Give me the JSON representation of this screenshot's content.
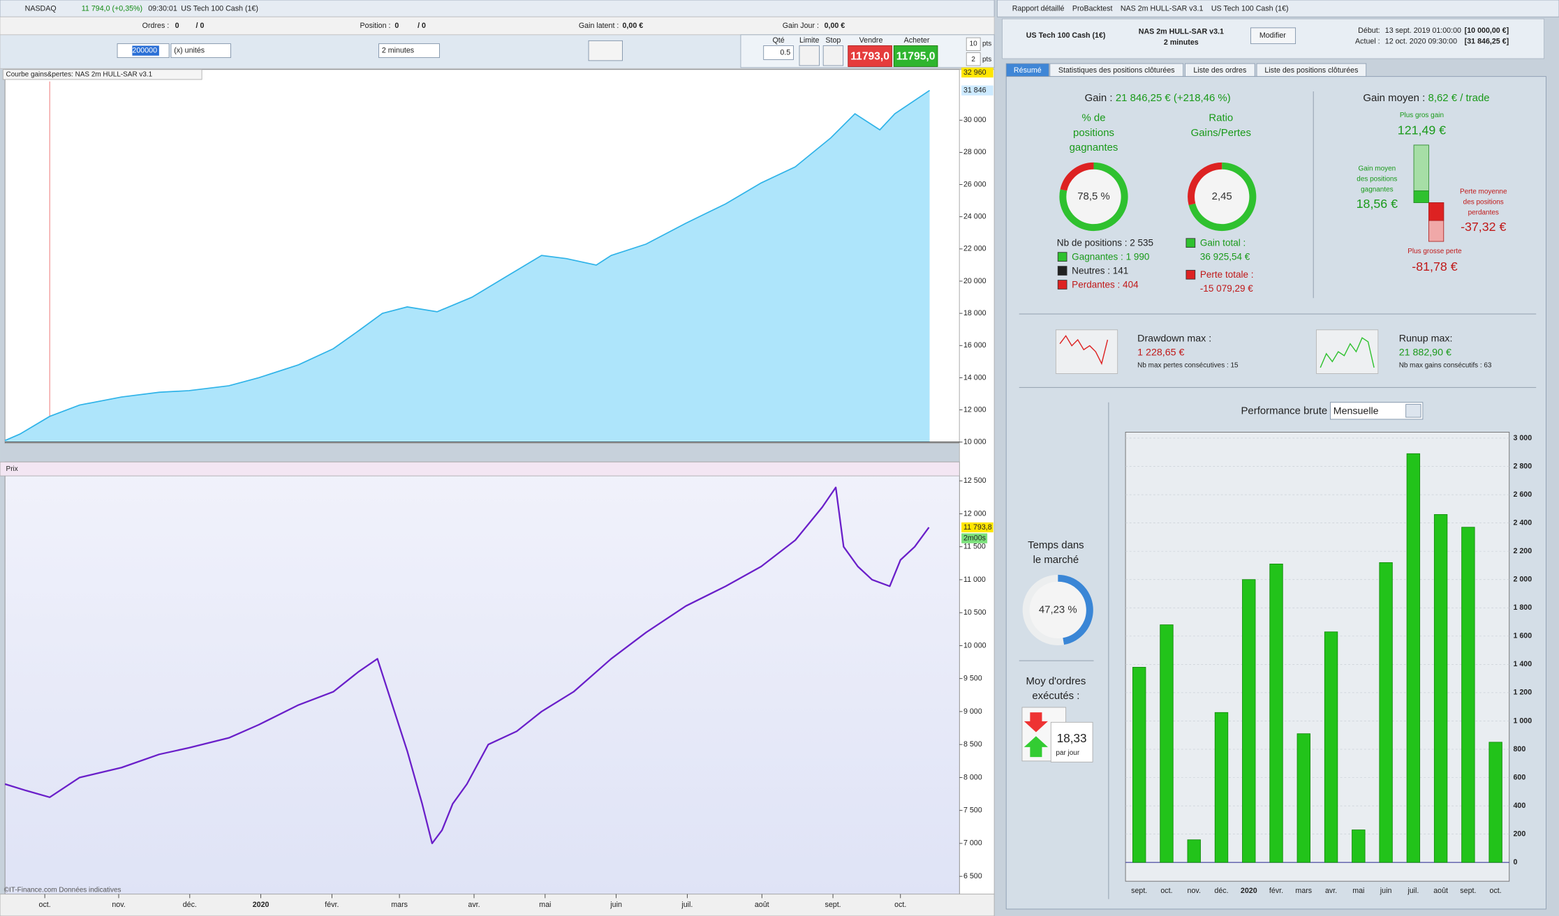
{
  "platform": {
    "window_title": "NASDAQ",
    "quote": "11 794,0 (+0,35%)",
    "time": "09:30:01",
    "instrument": "US Tech 100 Cash (1€)",
    "orders_label": "Ordres :",
    "orders_value": "0",
    "orders_total": "/ 0",
    "position_label": "Position :",
    "position_value": "0",
    "position_total": "/ 0",
    "unrealized_label": "Gain latent :",
    "unrealized_value": "0,00 €",
    "daily_label": "Gain Jour :",
    "daily_value": "0,00 €",
    "capital": "200000",
    "size_mode": "(x) unités",
    "timeframe": "2 minutes",
    "qty_label": "Qté",
    "qty": "0.5",
    "limit_label": "Limite",
    "stop_label": "Stop",
    "sell_label": "Vendre",
    "sell_price": "11793,0",
    "buy_label": "Acheter",
    "buy_price": "11795,0",
    "stop_pts": "10",
    "stop_unit": "pts",
    "limit_pts": "2",
    "limit_unit": "pts",
    "equity_panel": "Courbe gains&pertes: NAS 2m HULL-SAR v3.1",
    "price_panel": "Prix",
    "footer": "©IT-Finance.com  Données indicatives"
  },
  "chart_data": [
    {
      "type": "area",
      "color": "#2fb3e8",
      "fill": "#aee5fb",
      "xlim": [
        0,
        13.43
      ],
      "ylim": [
        10000,
        32960
      ],
      "x": [
        0,
        0.21,
        0.63,
        1.05,
        1.64,
        2.17,
        2.59,
        3.15,
        3.57,
        4.13,
        4.62,
        4.97,
        5.31,
        5.66,
        6.08,
        6.57,
        7.06,
        7.55,
        7.9,
        8.32,
        8.53,
        9.02,
        9.58,
        10.14,
        10.64,
        11.12,
        11.62,
        11.96,
        12.31,
        12.52,
        13.01
      ],
      "values": [
        10100,
        10500,
        11600,
        12300,
        12800,
        13100,
        13200,
        13500,
        14000,
        14800,
        15800,
        16900,
        18000,
        18400,
        18100,
        19000,
        20300,
        21600,
        21400,
        21000,
        21600,
        22300,
        23600,
        24800,
        26100,
        27100,
        28900,
        30400,
        29400,
        30400,
        31846
      ],
      "yticks": [
        {
          "value": 10000,
          "label": "10 000"
        },
        {
          "value": 12000,
          "label": "12 000"
        },
        {
          "value": 14000,
          "label": "14 000"
        },
        {
          "value": 16000,
          "label": "16 000"
        },
        {
          "value": 18000,
          "label": "18 000"
        },
        {
          "value": 20000,
          "label": "20 000"
        },
        {
          "value": 22000,
          "label": "22 000"
        },
        {
          "value": 24000,
          "label": "24 000"
        },
        {
          "value": 26000,
          "label": "26 000"
        },
        {
          "value": 28000,
          "label": "28 000"
        },
        {
          "value": 30000,
          "label": "30 000"
        }
      ],
      "top_marker": {
        "value": 32960,
        "label": "32 960"
      },
      "current_value": {
        "value": 31846,
        "label": "31 846"
      }
    },
    {
      "type": "line",
      "color": "#6a1fc9",
      "xlim": [
        0,
        13.43
      ],
      "ylim": [
        6230,
        12560
      ],
      "x": [
        0,
        0.3,
        0.63,
        1.05,
        1.64,
        2.17,
        2.59,
        3.15,
        3.57,
        4.13,
        4.62,
        4.97,
        5.24,
        5.45,
        5.66,
        5.87,
        6.01,
        6.15,
        6.3,
        6.5,
        6.8,
        7.2,
        7.55,
        8.0,
        8.53,
        9.02,
        9.58,
        10.14,
        10.64,
        11.12,
        11.5,
        11.69,
        11.8,
        12.0,
        12.2,
        12.45,
        12.6,
        12.8,
        13.0
      ],
      "values": [
        7900,
        7800,
        7700,
        8000,
        8150,
        8350,
        8450,
        8600,
        8800,
        9100,
        9300,
        9600,
        9800,
        9100,
        8400,
        7600,
        7000,
        7200,
        7600,
        7900,
        8500,
        8700,
        9000,
        9300,
        9800,
        10200,
        10600,
        10900,
        11200,
        11600,
        12100,
        12400,
        11500,
        11200,
        11000,
        10900,
        11300,
        11500,
        11794
      ],
      "yticks": [
        {
          "value": 6500,
          "label": "6 500"
        },
        {
          "value": 7000,
          "label": "7 000"
        },
        {
          "value": 7500,
          "label": "7 500"
        },
        {
          "value": 8000,
          "label": "8 000"
        },
        {
          "value": 8500,
          "label": "8 500"
        },
        {
          "value": 9000,
          "label": "9 000"
        },
        {
          "value": 9500,
          "label": "9 500"
        },
        {
          "value": 10000,
          "label": "10 000"
        },
        {
          "value": 10500,
          "label": "10 500"
        },
        {
          "value": 11000,
          "label": "11 000"
        },
        {
          "value": 11500,
          "label": "11 500"
        },
        {
          "value": 12000,
          "label": "12 000"
        },
        {
          "value": 12500,
          "label": "12 500"
        }
      ],
      "xticks": [
        {
          "value": 0.56,
          "label": "oct."
        },
        {
          "value": 1.6,
          "label": "nov."
        },
        {
          "value": 2.6,
          "label": "déc."
        },
        {
          "value": 3.6,
          "label": "2020"
        },
        {
          "value": 4.6,
          "label": "févr."
        },
        {
          "value": 5.55,
          "label": "mars"
        },
        {
          "value": 6.6,
          "label": "avr."
        },
        {
          "value": 7.6,
          "label": "mai"
        },
        {
          "value": 8.6,
          "label": "juin"
        },
        {
          "value": 9.6,
          "label": "juil."
        },
        {
          "value": 10.65,
          "label": "août"
        },
        {
          "value": 11.65,
          "label": "sept."
        },
        {
          "value": 12.6,
          "label": "oct."
        }
      ],
      "current_value": {
        "value": 11793.8,
        "label": "11 793,8"
      },
      "bar_timer": "2m00s"
    },
    {
      "type": "bar",
      "color": "#22c31a",
      "grid": true,
      "categories": [
        "sept.",
        "oct.",
        "nov.",
        "déc.",
        "2020",
        "févr.",
        "mars",
        "avr.",
        "mai",
        "juin",
        "juil.",
        "août",
        "sept.",
        "oct."
      ],
      "values": [
        1380,
        1680,
        160,
        1060,
        2000,
        2110,
        910,
        1630,
        230,
        2120,
        2890,
        2460,
        2370,
        850
      ],
      "ylim": [
        -133,
        3042
      ],
      "yticks": [
        0,
        200,
        400,
        600,
        800,
        {
          "value": 1000,
          "label": "1 000"
        },
        {
          "value": 1200,
          "label": "1 200"
        },
        {
          "value": 1400,
          "label": "1 400"
        },
        {
          "value": 1600,
          "label": "1 600"
        },
        {
          "value": 1800,
          "label": "1 800"
        },
        {
          "value": 2000,
          "label": "2 000"
        },
        {
          "value": 2200,
          "label": "2 200"
        },
        {
          "value": 2400,
          "label": "2 400"
        },
        {
          "value": 2600,
          "label": "2 600"
        },
        {
          "value": 2800,
          "label": "2 800"
        },
        {
          "value": 3000,
          "label": "3 000"
        }
      ]
    }
  ],
  "report": {
    "window_tabs": [
      "Rapport détaillé",
      "ProBacktest",
      "NAS 2m HULL-SAR v3.1",
      "US Tech 100 Cash (1€)"
    ],
    "instrument": "US Tech 100 Cash (1€)",
    "strategy": "NAS 2m HULL-SAR v3.1",
    "timeframe": "2 minutes",
    "modify_button": "Modifier",
    "start_label": "Début:",
    "start_date": "13 sept. 2019 01:00:00",
    "start_capital": "[10 000,00 €]",
    "current_label": "Actuel :",
    "current_date": "12 oct. 2020 09:30:00",
    "current_capital": "[31 846,25 €]",
    "tabs": [
      "Résumé",
      "Statistiques des positions clôturées",
      "Liste des ordres",
      "Liste des positions clôturées"
    ],
    "gain_label": "Gain :",
    "gain_value": "21 846,25 € (+218,46 %)",
    "win_pct_title": [
      "% de",
      "positions",
      "gagnantes"
    ],
    "win_pct": "78,5 %",
    "ratio_title": [
      "Ratio",
      "Gains/Pertes"
    ],
    "ratio": "2,45",
    "positions": "Nb de positions : 2 535",
    "winners": "Gagnantes : 1 990",
    "neutral": "Neutres : 141",
    "losers": "Perdantes : 404",
    "total_gain_label": "Gain total :",
    "total_gain": "36 925,54 €",
    "total_loss_label": "Perte totale :",
    "total_loss": "-15 079,29 €",
    "avg_gain_label": "Gain moyen :",
    "avg_gain": "8,62 € / trade",
    "best_label": "Plus gros gain",
    "best": "121,49 €",
    "avg_win_label": [
      "Gain moyen",
      "des positions",
      "gagnantes"
    ],
    "avg_win": "18,56 €",
    "avg_loss_label": [
      "Perte moyenne",
      "des positions",
      "perdantes"
    ],
    "avg_loss": "-37,32 €",
    "worst_label": "Plus grosse perte",
    "worst": "-81,78 €",
    "drawdown_label": "Drawdown max :",
    "drawdown": "1 228,65 €",
    "max_losses": "Nb max pertes consécutives : 15",
    "runup_label": "Runup max:",
    "runup": "21 882,90 €",
    "max_gains": "Nb max gains consécutifs : 63",
    "perf_label": "Performance brute",
    "perf_period": "Mensuelle",
    "market_time_label": [
      "Temps dans",
      "le marché"
    ],
    "market_time": "47,23 %",
    "orders_label": [
      "Moy d'ordres",
      "exécutés :"
    ],
    "orders_per_day": "18,33",
    "per_day": "par jour"
  }
}
